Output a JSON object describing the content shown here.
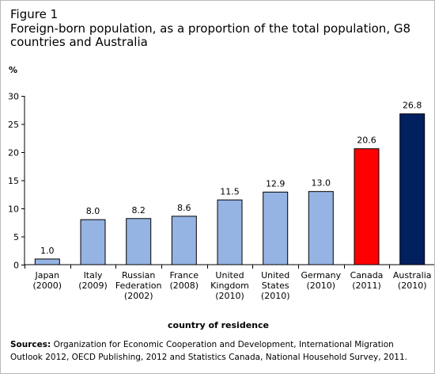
{
  "figure": {
    "label": "Figure 1",
    "title": "Foreign-born population, as a proportion of the total population, G8 countries and Australia"
  },
  "chart_data": {
    "type": "bar",
    "unit_label": "%",
    "xlabel": "country of residence",
    "ylabel": "%",
    "ylim": [
      0,
      30
    ],
    "yticks": [
      0,
      5,
      10,
      15,
      20,
      25,
      30
    ],
    "grid": false,
    "categories": [
      [
        "Japan",
        "(2000)"
      ],
      [
        "Italy",
        "(2009)"
      ],
      [
        "Russian",
        "Federation",
        "(2002)"
      ],
      [
        "France",
        "(2008)"
      ],
      [
        "United",
        "Kingdom",
        "(2010)"
      ],
      [
        "United",
        "States",
        "(2010)"
      ],
      [
        "Germany",
        "(2010)"
      ],
      [
        "Canada",
        "(2011)"
      ],
      [
        "Australia",
        "(2010)"
      ]
    ],
    "values": [
      1.0,
      8.0,
      8.2,
      8.6,
      11.5,
      12.9,
      13.0,
      20.6,
      26.8
    ],
    "value_labels": [
      "1.0",
      "8.0",
      "8.2",
      "8.6",
      "11.5",
      "12.9",
      "13.0",
      "20.6",
      "26.8"
    ],
    "colors": [
      "#95b3e3",
      "#95b3e3",
      "#95b3e3",
      "#95b3e3",
      "#95b3e3",
      "#95b3e3",
      "#95b3e3",
      "#ff0000",
      "#002060"
    ]
  },
  "sources": {
    "label": "Sources:",
    "text": "Organization for Economic Cooperation and Development, International Migration Outlook 2012, OECD Publishing, 2012 and Statistics Canada, National Household Survey, 2011."
  }
}
